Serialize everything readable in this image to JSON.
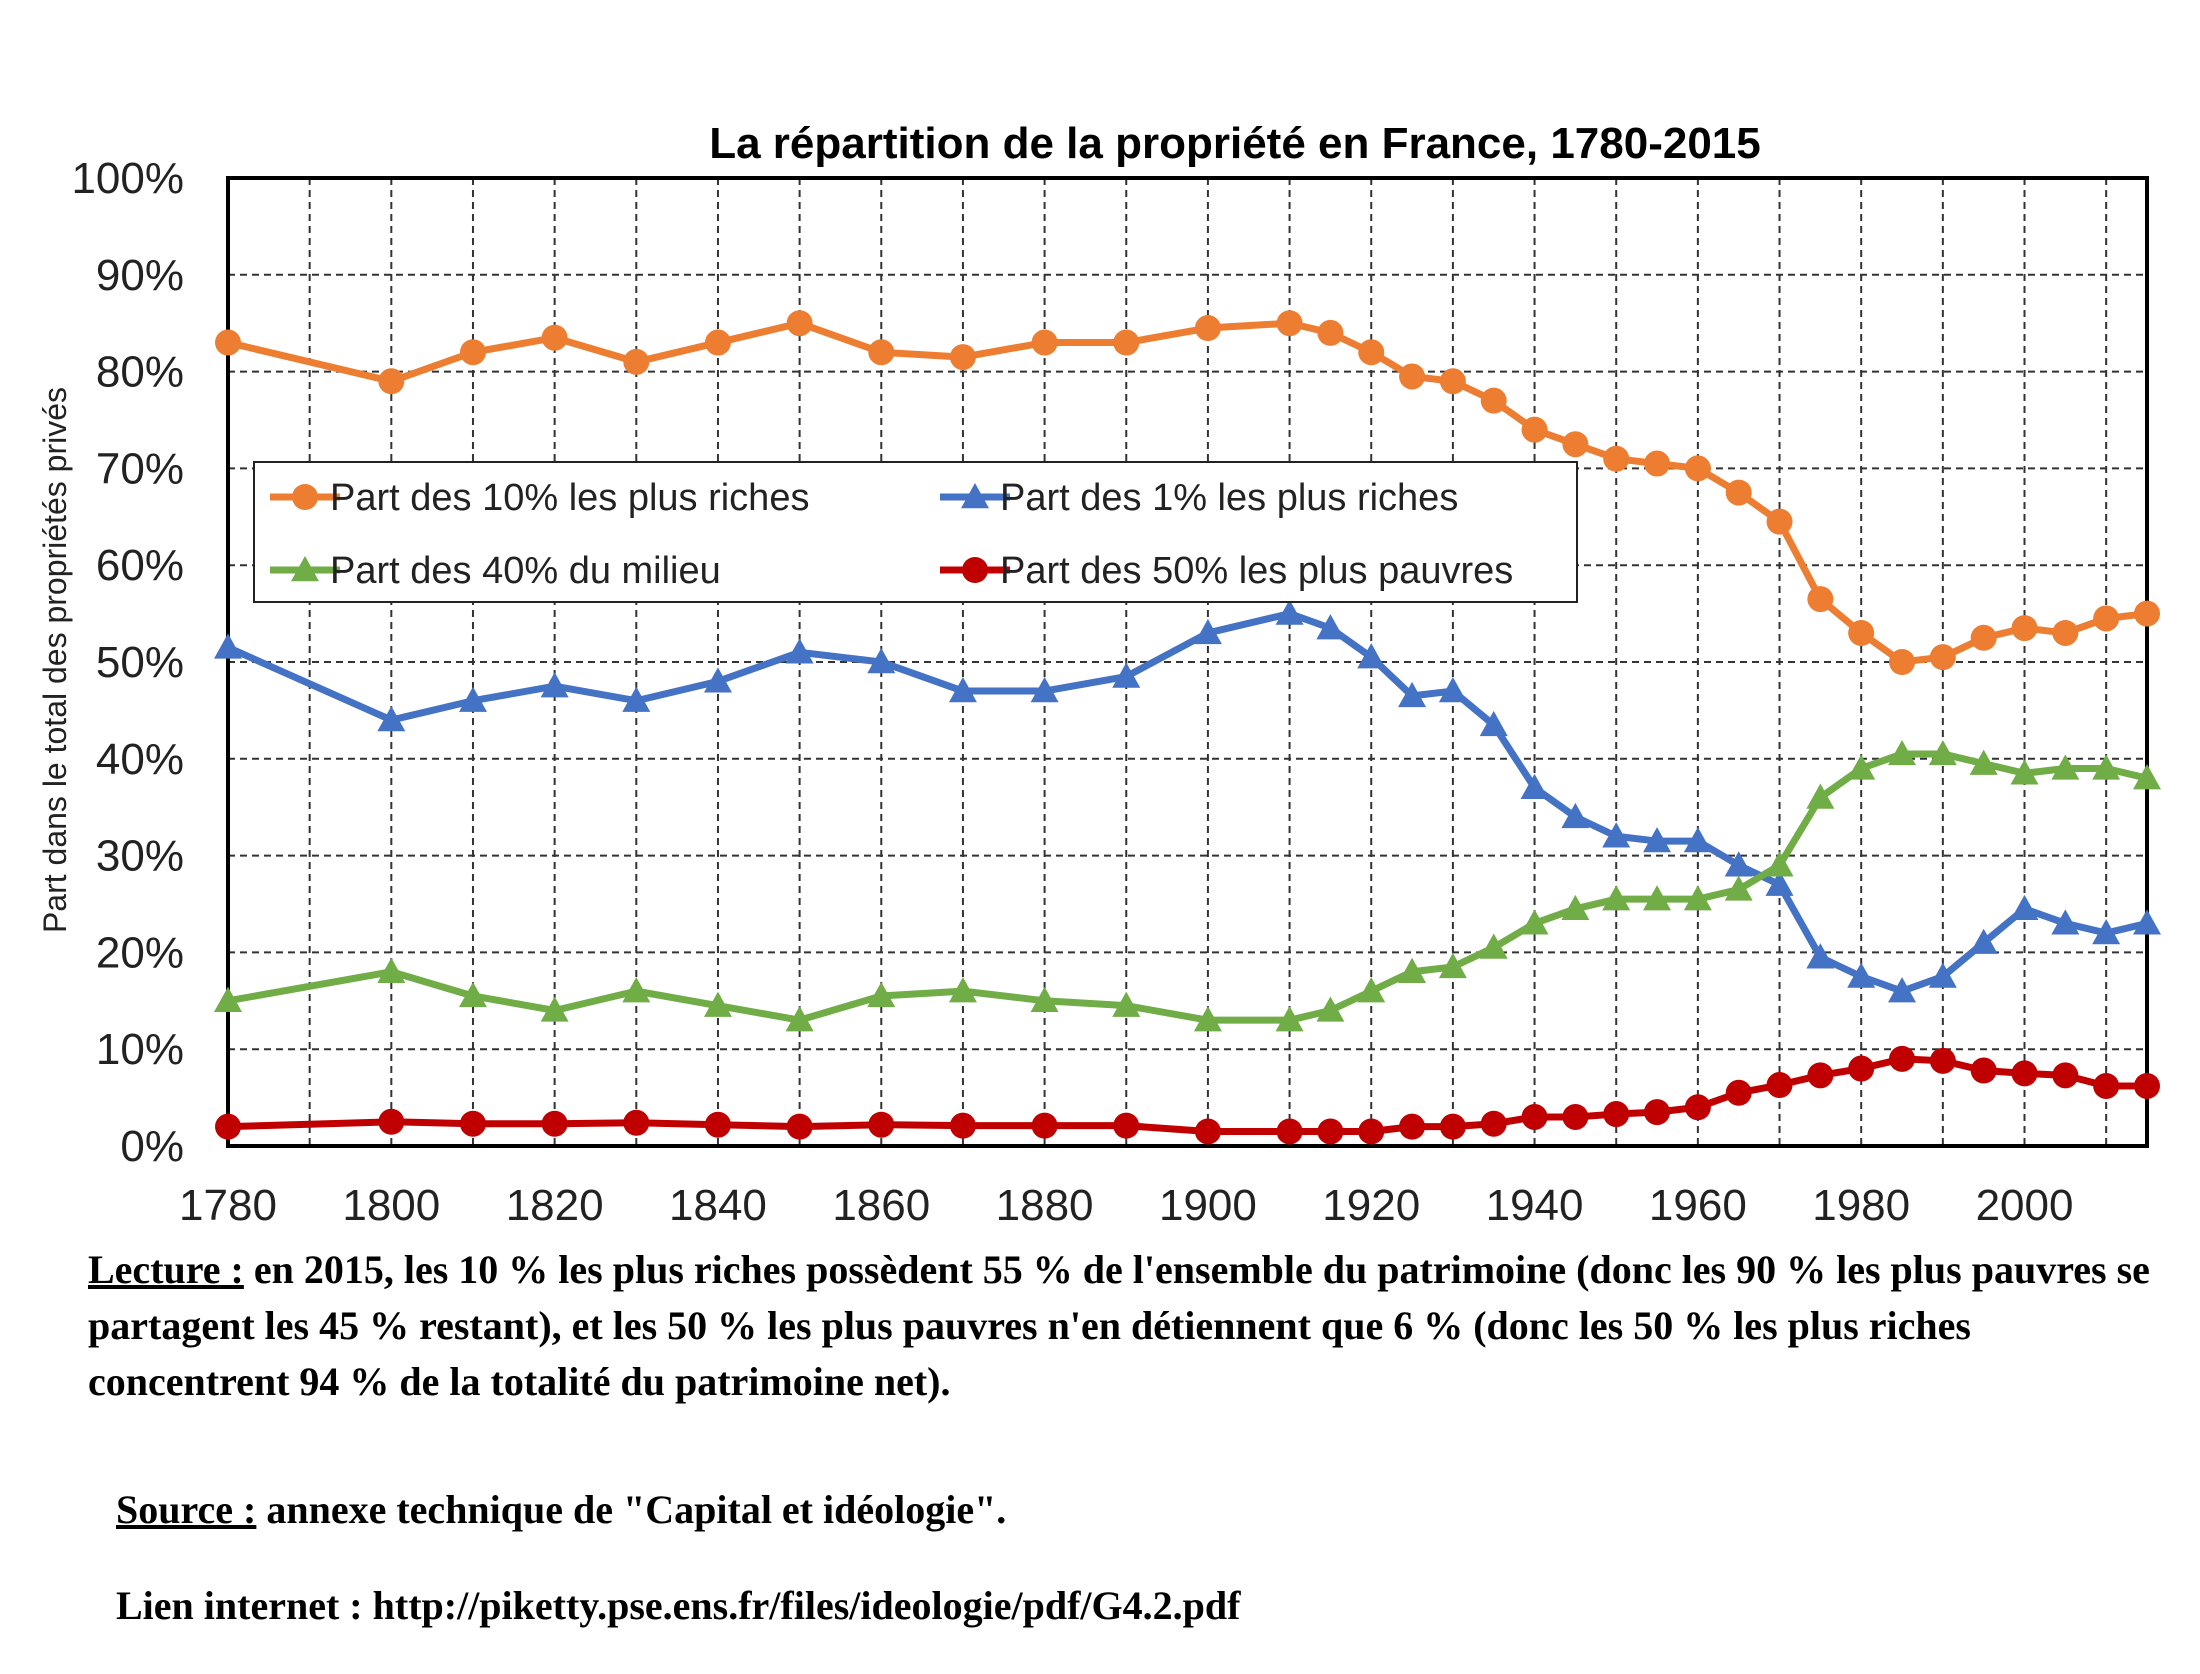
{
  "chart_data": {
    "type": "line",
    "title": "La répartition de la propriété en France, 1780-2015",
    "ylabel": "Part dans le total des propriétés privés",
    "xlabel": "",
    "xlim": [
      1780,
      2015
    ],
    "ylim": [
      0,
      100
    ],
    "x_ticks": [
      "1780",
      "1800",
      "1820",
      "1840",
      "1860",
      "1880",
      "1900",
      "1920",
      "1940",
      "1960",
      "1980",
      "2000"
    ],
    "y_ticks": [
      "0%",
      "10%",
      "20%",
      "30%",
      "40%",
      "50%",
      "60%",
      "70%",
      "80%",
      "90%",
      "100%"
    ],
    "grid": true,
    "legend_position": "inside-upper-left",
    "x": [
      1780,
      1800,
      1810,
      1820,
      1830,
      1840,
      1850,
      1860,
      1870,
      1880,
      1890,
      1900,
      1910,
      1915,
      1920,
      1925,
      1930,
      1935,
      1940,
      1945,
      1950,
      1955,
      1960,
      1965,
      1970,
      1975,
      1980,
      1985,
      1990,
      1995,
      2000,
      2005,
      2010,
      2015
    ],
    "series": [
      {
        "name": "Part des 10% les plus riches",
        "color": "#ED7D31",
        "marker": "circle",
        "values": [
          83,
          79,
          82,
          83.5,
          81,
          83,
          85,
          82,
          81.5,
          83,
          83,
          84.5,
          85,
          84,
          82,
          79.5,
          79,
          77,
          74,
          72.5,
          71,
          70.5,
          70,
          67.5,
          64.5,
          56.5,
          53,
          50,
          50.5,
          52.5,
          53.5,
          53,
          54.5,
          55
        ]
      },
      {
        "name": "Part des 1% les plus riches",
        "color": "#4472C4",
        "marker": "triangle",
        "values": [
          51.5,
          44,
          46,
          47.5,
          46,
          48,
          51,
          50,
          47,
          47,
          48.5,
          53,
          55,
          53.5,
          50.5,
          46.5,
          47,
          43.5,
          37,
          34,
          32,
          31.5,
          31.5,
          29,
          27,
          19.5,
          17.5,
          16,
          17.5,
          21,
          24.5,
          23,
          22,
          23
        ]
      },
      {
        "name": "Part des 40% du milieu",
        "color": "#70AD47",
        "marker": "triangle",
        "values": [
          15,
          18,
          15.5,
          14,
          16,
          14.5,
          13,
          15.5,
          16,
          15,
          14.5,
          13,
          13,
          14,
          16,
          18,
          18.5,
          20.5,
          23,
          24.5,
          25.5,
          25.5,
          25.5,
          26.5,
          29,
          36,
          39,
          40.5,
          40.5,
          39.5,
          38.5,
          39,
          39,
          38
        ]
      },
      {
        "name": "Part des 50% les plus pauvres",
        "color": "#C00000",
        "marker": "circle",
        "values": [
          2,
          2.5,
          2.3,
          2.3,
          2.4,
          2.2,
          2,
          2.2,
          2.1,
          2.1,
          2.1,
          1.5,
          1.5,
          1.5,
          1.5,
          2,
          2,
          2.3,
          3,
          3,
          3.3,
          3.5,
          4,
          5.5,
          6.3,
          7.3,
          8,
          9,
          8.8,
          7.8,
          7.5,
          7.3,
          6.2,
          6.2
        ]
      }
    ]
  },
  "notes": {
    "lecture_label": "Lecture :",
    "lecture_text": " en 2015, les 10 % les plus riches possèdent 55 % de l'ensemble du patrimoine (donc les 90 % les plus pauvres se partagent les 45 % restant), et les 50 % les plus pauvres n'en détiennent que 6 % (donc les 50 % les plus riches concentrent 94 % de la totalité du patrimoine net).",
    "source_label": "Source :",
    "source_text": " annexe technique de \"Capital et idéologie\".",
    "link_text": "Lien internet : http://piketty.pse.ens.fr/files/ideologie/pdf/G4.2.pdf"
  }
}
